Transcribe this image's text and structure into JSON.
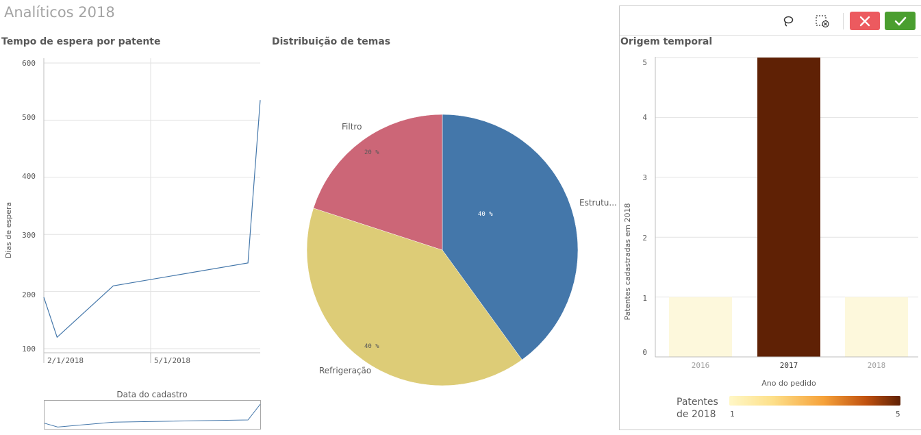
{
  "app_title": "Analíticos 2018",
  "line_panel": {
    "title": "Tempo de espera por patente",
    "y_ticks": [
      "600",
      "500",
      "400",
      "300",
      "200",
      "100"
    ],
    "x_ticks": [
      "2/1/2018",
      "5/1/2018"
    ],
    "ylabel": "Dias de espera",
    "xlabel": "Data do cadastro"
  },
  "pie_panel": {
    "title": "Distribuição de temas",
    "slices": [
      {
        "label": "Estrutu...",
        "pct_label": "40 %",
        "value": 40,
        "color": "#4477aa"
      },
      {
        "label": "Refrigeração",
        "pct_label": "40 %",
        "value": 40,
        "color": "#ddcc77"
      },
      {
        "label": "Filtro",
        "pct_label": "20 %",
        "value": 20,
        "color": "#cc6677"
      }
    ]
  },
  "bar_panel": {
    "title": "Origem temporal",
    "ylabel": "Patentes cadastradas em 2018",
    "xlabel": "Ano do pedido",
    "y_ticks": [
      "5",
      "4",
      "3",
      "2",
      "1",
      "0"
    ],
    "categories": [
      "2016",
      "2017",
      "2018"
    ],
    "legend": {
      "title_line1": "Patentes",
      "title_line2": "de 2018",
      "min": "1",
      "max": "5"
    },
    "colors": {
      "low": "#fdf8dc",
      "high": "#5f2105"
    }
  },
  "chart_data": [
    {
      "type": "line",
      "title": "Tempo de espera por patente",
      "xlabel": "Data do cadastro",
      "ylabel": "Dias de espera",
      "ylim": [
        100,
        600
      ],
      "x": [
        "1/1/2018",
        "1/14/2018",
        "3/10/2018",
        "7/20/2018",
        "8/1/2018"
      ],
      "values": [
        190,
        120,
        210,
        250,
        535
      ],
      "color": "#4477aa",
      "grid": true
    },
    {
      "type": "pie",
      "title": "Distribuição de temas",
      "categories": [
        "Estrutu...",
        "Refrigeração",
        "Filtro"
      ],
      "values": [
        40,
        40,
        20
      ]
    },
    {
      "type": "bar",
      "title": "Origem temporal",
      "xlabel": "Ano do pedido",
      "ylabel": "Patentes cadastradas em 2018",
      "categories": [
        "2016",
        "2017",
        "2018"
      ],
      "values": [
        1,
        5,
        1
      ],
      "ylim": [
        0,
        5
      ],
      "legend": "bottom"
    }
  ]
}
